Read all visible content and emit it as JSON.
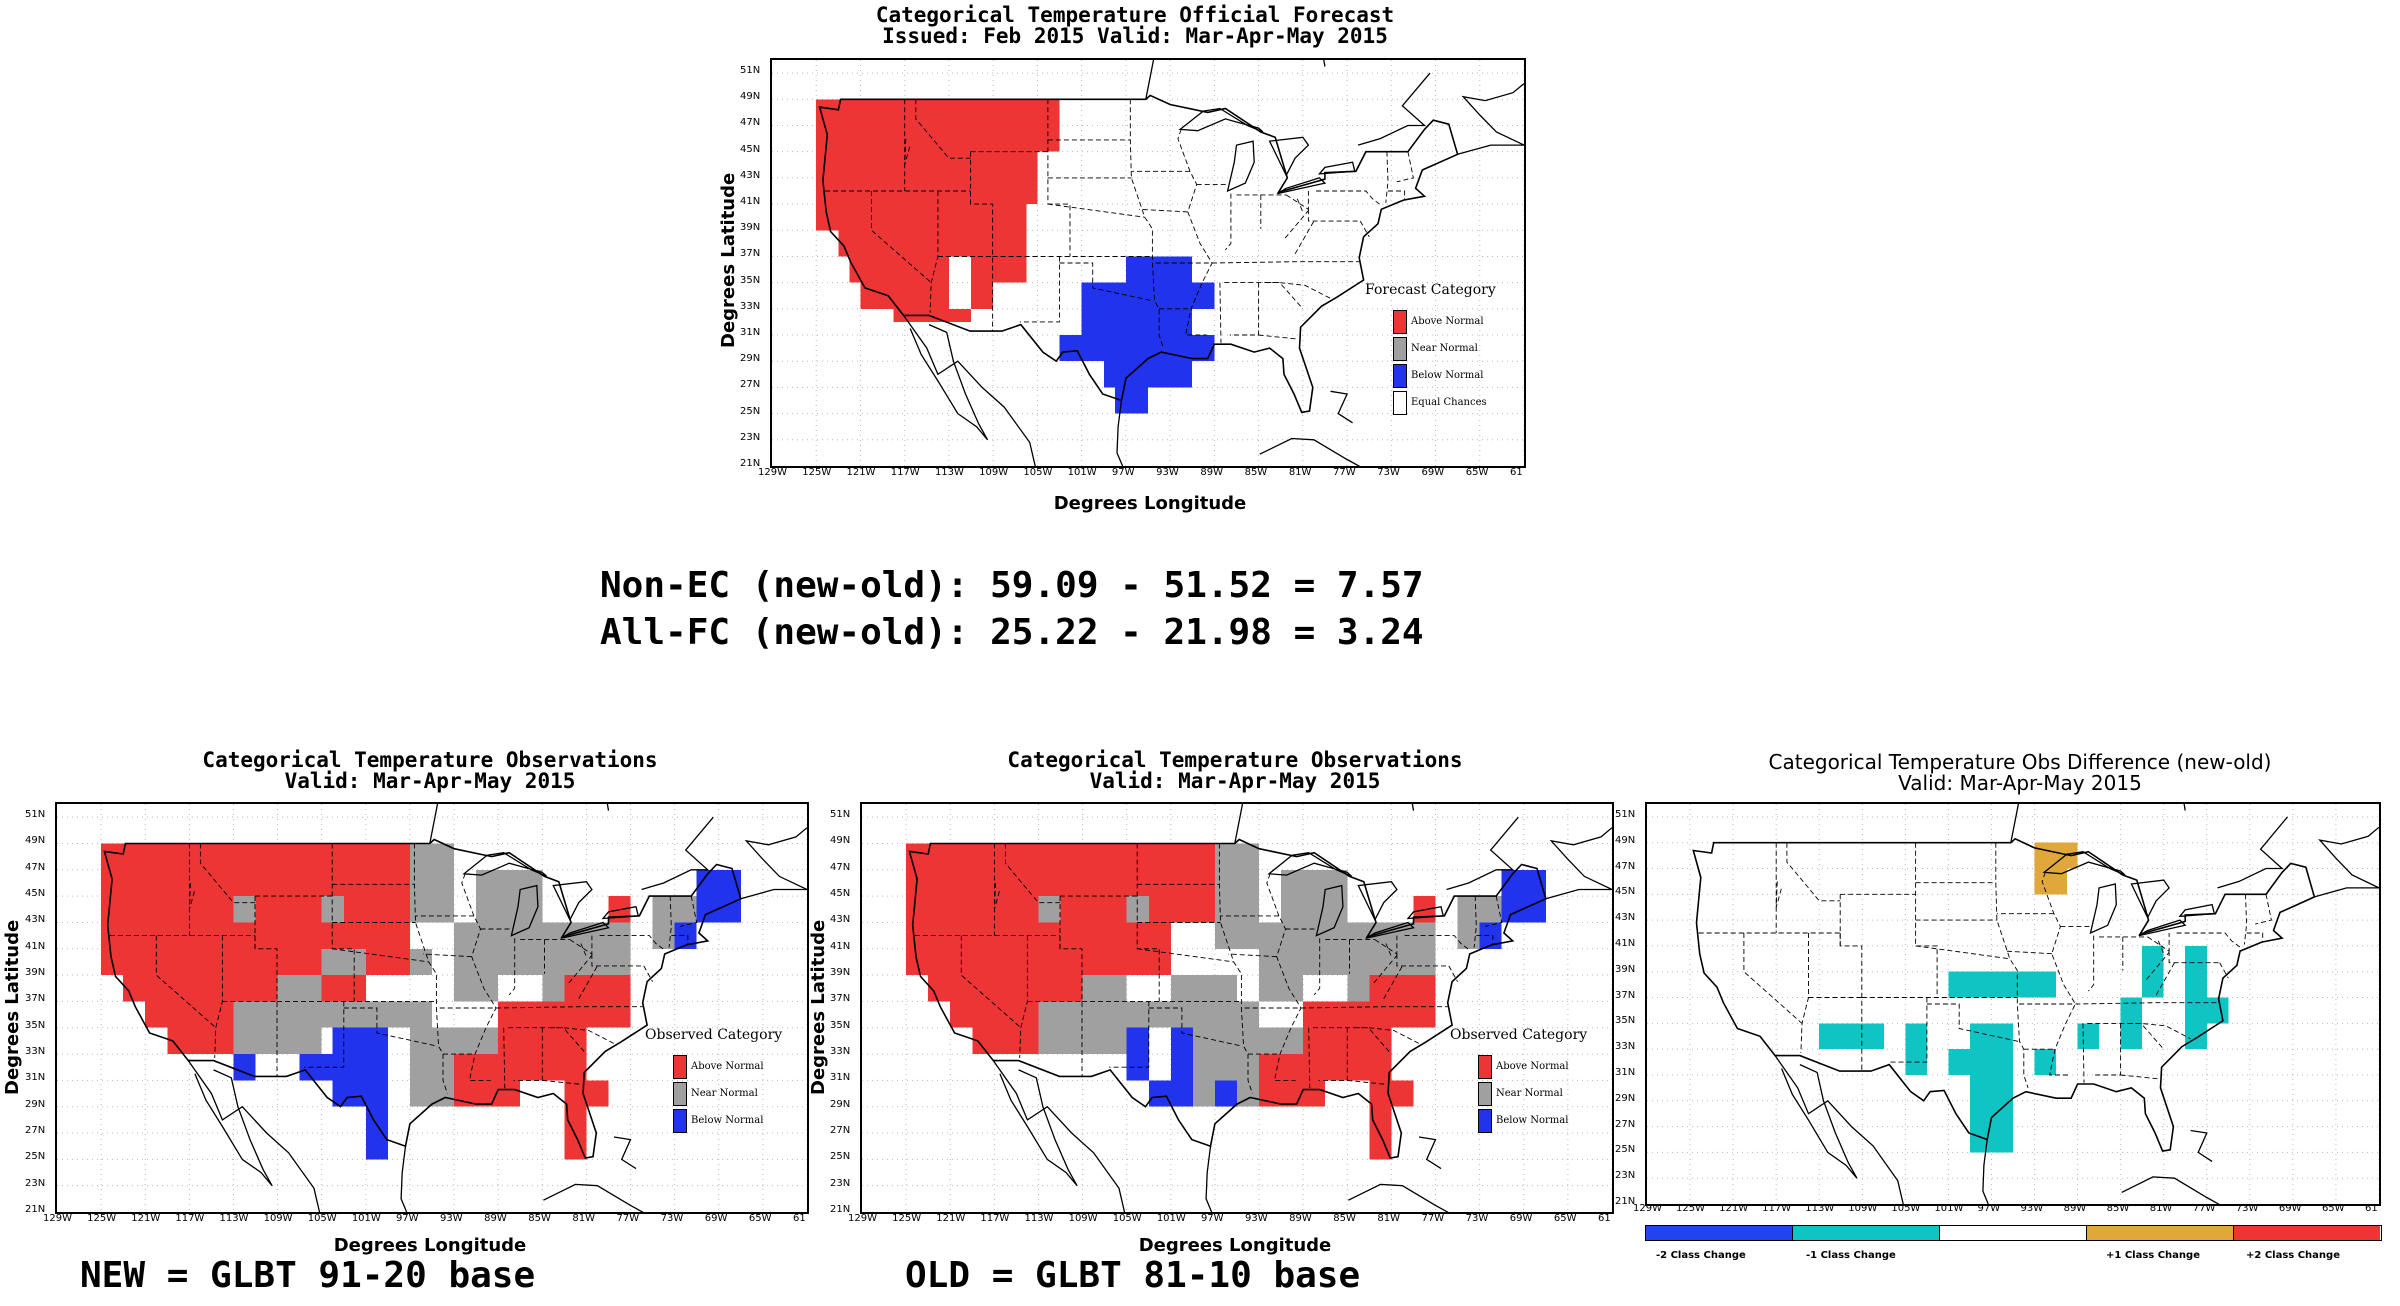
{
  "colors": {
    "above": "#ee3535",
    "near": "#a0a0a0",
    "below": "#2233ee",
    "equal": "#ffffff",
    "minus2": "#2244ee",
    "minus1": "#11c4c4",
    "zero": "#ffffff",
    "plus1": "#e0a83a",
    "plus2": "#ee3535"
  },
  "lat_ticks": [
    "51N",
    "49N",
    "47N",
    "45N",
    "43N",
    "41N",
    "39N",
    "37N",
    "35N",
    "33N",
    "31N",
    "29N",
    "27N",
    "25N",
    "23N",
    "21N"
  ],
  "lon_ticks": [
    "129W",
    "125W",
    "121W",
    "117W",
    "113W",
    "109W",
    "105W",
    "101W",
    "97W",
    "93W",
    "89W",
    "85W",
    "81W",
    "77W",
    "73W",
    "69W",
    "65W",
    "61"
  ],
  "forecast": {
    "title_line1": "Categorical Temperature Official Forecast",
    "title_line2": "Issued: Feb 2015 Valid: Mar-Apr-May 2015",
    "ylabel": "Degrees Latitude",
    "xlabel": "Degrees Longitude",
    "legend_title": "Forecast Category",
    "legend": [
      "Above Normal",
      "Near Normal",
      "Below Normal",
      "Equal Chances"
    ]
  },
  "stats": {
    "line1": "Non-EC (new-old): 59.09 - 51.52 = 7.57",
    "line2": "All-FC (new-old): 25.22 - 21.98 = 3.24"
  },
  "obs_new": {
    "title_line1": "Categorical Temperature Observations",
    "title_line2": "Valid: Mar-Apr-May 2015",
    "ylabel": "Degrees Latitude",
    "xlabel": "Degrees Longitude",
    "legend_title": "Observed Category",
    "legend": [
      "Above Normal",
      "Near Normal",
      "Below Normal"
    ],
    "caption": "NEW = GLBT 91-20 base"
  },
  "obs_old": {
    "title_line1": "Categorical Temperature Observations",
    "title_line2": "Valid: Mar-Apr-May 2015",
    "ylabel": "Degrees Latitude",
    "xlabel": "Degrees Longitude",
    "legend_title": "Observed Category",
    "legend": [
      "Above Normal",
      "Near Normal",
      "Below Normal"
    ],
    "caption": "OLD = GLBT 81-10 base"
  },
  "diff": {
    "title_line1": "Categorical Temperature Obs Difference (new-old)",
    "title_line2": "Valid: Mar-Apr-May 2015",
    "colorbar": [
      "-2 Class Change",
      "-1 Class Change",
      "+1 Class Change",
      "+2 Class Change"
    ]
  }
}
